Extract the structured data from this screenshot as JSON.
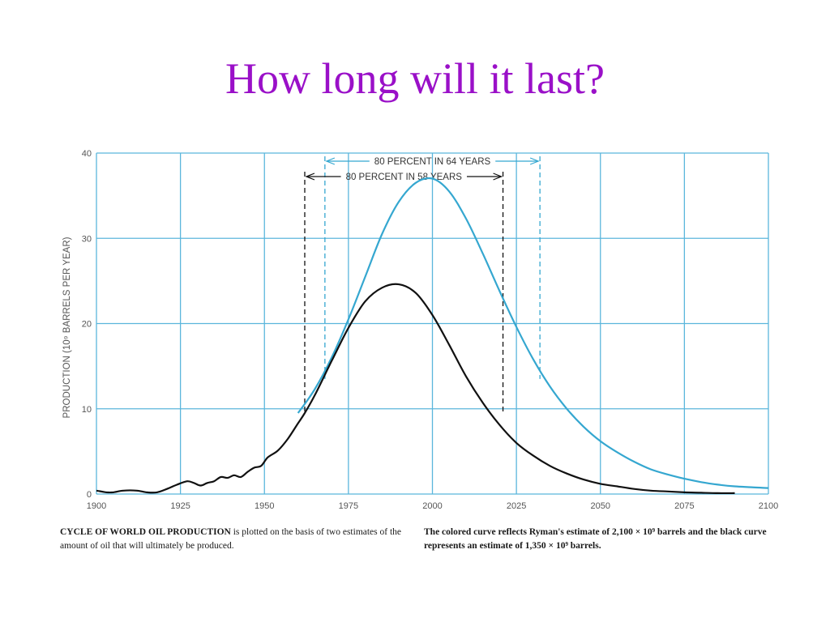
{
  "slide": {
    "title": "How long will it last?"
  },
  "chart_data": {
    "type": "line",
    "title": "",
    "xlabel": "",
    "ylabel": "PRODUCTION (10⁹ BARRELS PER YEAR)",
    "xlim": [
      1900,
      2100
    ],
    "ylim": [
      0,
      40
    ],
    "x_ticks": [
      "1900",
      "1925",
      "1950",
      "1975",
      "2000",
      "2025",
      "2050",
      "2075",
      "2100"
    ],
    "y_ticks": [
      "0",
      "10",
      "20",
      "30",
      "40"
    ],
    "grid": true,
    "colors": {
      "colored": "#35a7d0",
      "black": "#111111",
      "grid": "#5bb6dc"
    },
    "series": [
      {
        "key": "colored",
        "points": [
          [
            1960,
            9.5
          ],
          [
            1965,
            12.3
          ],
          [
            1970,
            16.0
          ],
          [
            1975,
            20.5
          ],
          [
            1980,
            25.5
          ],
          [
            1985,
            30.5
          ],
          [
            1990,
            34.3
          ],
          [
            1995,
            36.5
          ],
          [
            2000,
            37.0
          ],
          [
            2005,
            35.5
          ],
          [
            2010,
            32.3
          ],
          [
            2015,
            28.2
          ],
          [
            2020,
            23.8
          ],
          [
            2025,
            19.6
          ],
          [
            2030,
            15.8
          ],
          [
            2035,
            12.6
          ],
          [
            2040,
            10.0
          ],
          [
            2045,
            7.9
          ],
          [
            2050,
            6.2
          ],
          [
            2055,
            4.9
          ],
          [
            2060,
            3.8
          ],
          [
            2065,
            2.9
          ],
          [
            2070,
            2.3
          ],
          [
            2075,
            1.8
          ],
          [
            2080,
            1.4
          ],
          [
            2085,
            1.1
          ],
          [
            2090,
            0.9
          ],
          [
            2095,
            0.8
          ],
          [
            2100,
            0.7
          ]
        ]
      },
      {
        "key": "black",
        "points": [
          [
            1900,
            0.4
          ],
          [
            1903,
            0.2
          ],
          [
            1905,
            0.2
          ],
          [
            1908,
            0.4
          ],
          [
            1912,
            0.4
          ],
          [
            1915,
            0.2
          ],
          [
            1918,
            0.2
          ],
          [
            1921,
            0.6
          ],
          [
            1924,
            1.1
          ],
          [
            1927,
            1.5
          ],
          [
            1929,
            1.3
          ],
          [
            1931,
            1.0
          ],
          [
            1933,
            1.3
          ],
          [
            1935,
            1.5
          ],
          [
            1937,
            2.0
          ],
          [
            1939,
            1.9
          ],
          [
            1941,
            2.2
          ],
          [
            1943,
            2.0
          ],
          [
            1945,
            2.6
          ],
          [
            1947,
            3.1
          ],
          [
            1949,
            3.3
          ],
          [
            1951,
            4.3
          ],
          [
            1954,
            5.1
          ],
          [
            1957,
            6.5
          ],
          [
            1960,
            8.3
          ],
          [
            1962,
            9.5
          ],
          [
            1965,
            11.6
          ],
          [
            1970,
            15.6
          ],
          [
            1975,
            19.5
          ],
          [
            1980,
            22.6
          ],
          [
            1985,
            24.2
          ],
          [
            1990,
            24.6
          ],
          [
            1995,
            23.6
          ],
          [
            2000,
            21.0
          ],
          [
            2005,
            17.5
          ],
          [
            2010,
            13.8
          ],
          [
            2015,
            10.7
          ],
          [
            2020,
            8.1
          ],
          [
            2025,
            6.0
          ],
          [
            2030,
            4.5
          ],
          [
            2035,
            3.3
          ],
          [
            2040,
            2.4
          ],
          [
            2045,
            1.7
          ],
          [
            2050,
            1.2
          ],
          [
            2055,
            0.9
          ],
          [
            2060,
            0.6
          ],
          [
            2065,
            0.4
          ],
          [
            2070,
            0.3
          ],
          [
            2075,
            0.2
          ],
          [
            2080,
            0.15
          ],
          [
            2085,
            0.1
          ],
          [
            2090,
            0.1
          ]
        ]
      }
    ],
    "annotations": [
      {
        "label": "80 PERCENT IN 64 YEARS",
        "x_start": 1968,
        "x_end": 2032,
        "top_y": 40,
        "bottom_y": 13.5,
        "color": "colored"
      },
      {
        "label": "80 PERCENT IN 58 YEARS",
        "x_start": 1962,
        "x_end": 2021,
        "top_y": 38.6,
        "bottom_y": 9.5,
        "color": "black"
      }
    ],
    "caption_left": {
      "bold": "CYCLE OF WORLD OIL PRODUCTION",
      "rest": " is plotted on the basis of two estimates of the amount of oil that will ultimately be produced."
    },
    "caption_right": "The colored curve reflects Ryman's estimate of 2,100 × 10⁹ barrels and the black curve represents an estimate of 1,350 × 10⁹ barrels."
  }
}
